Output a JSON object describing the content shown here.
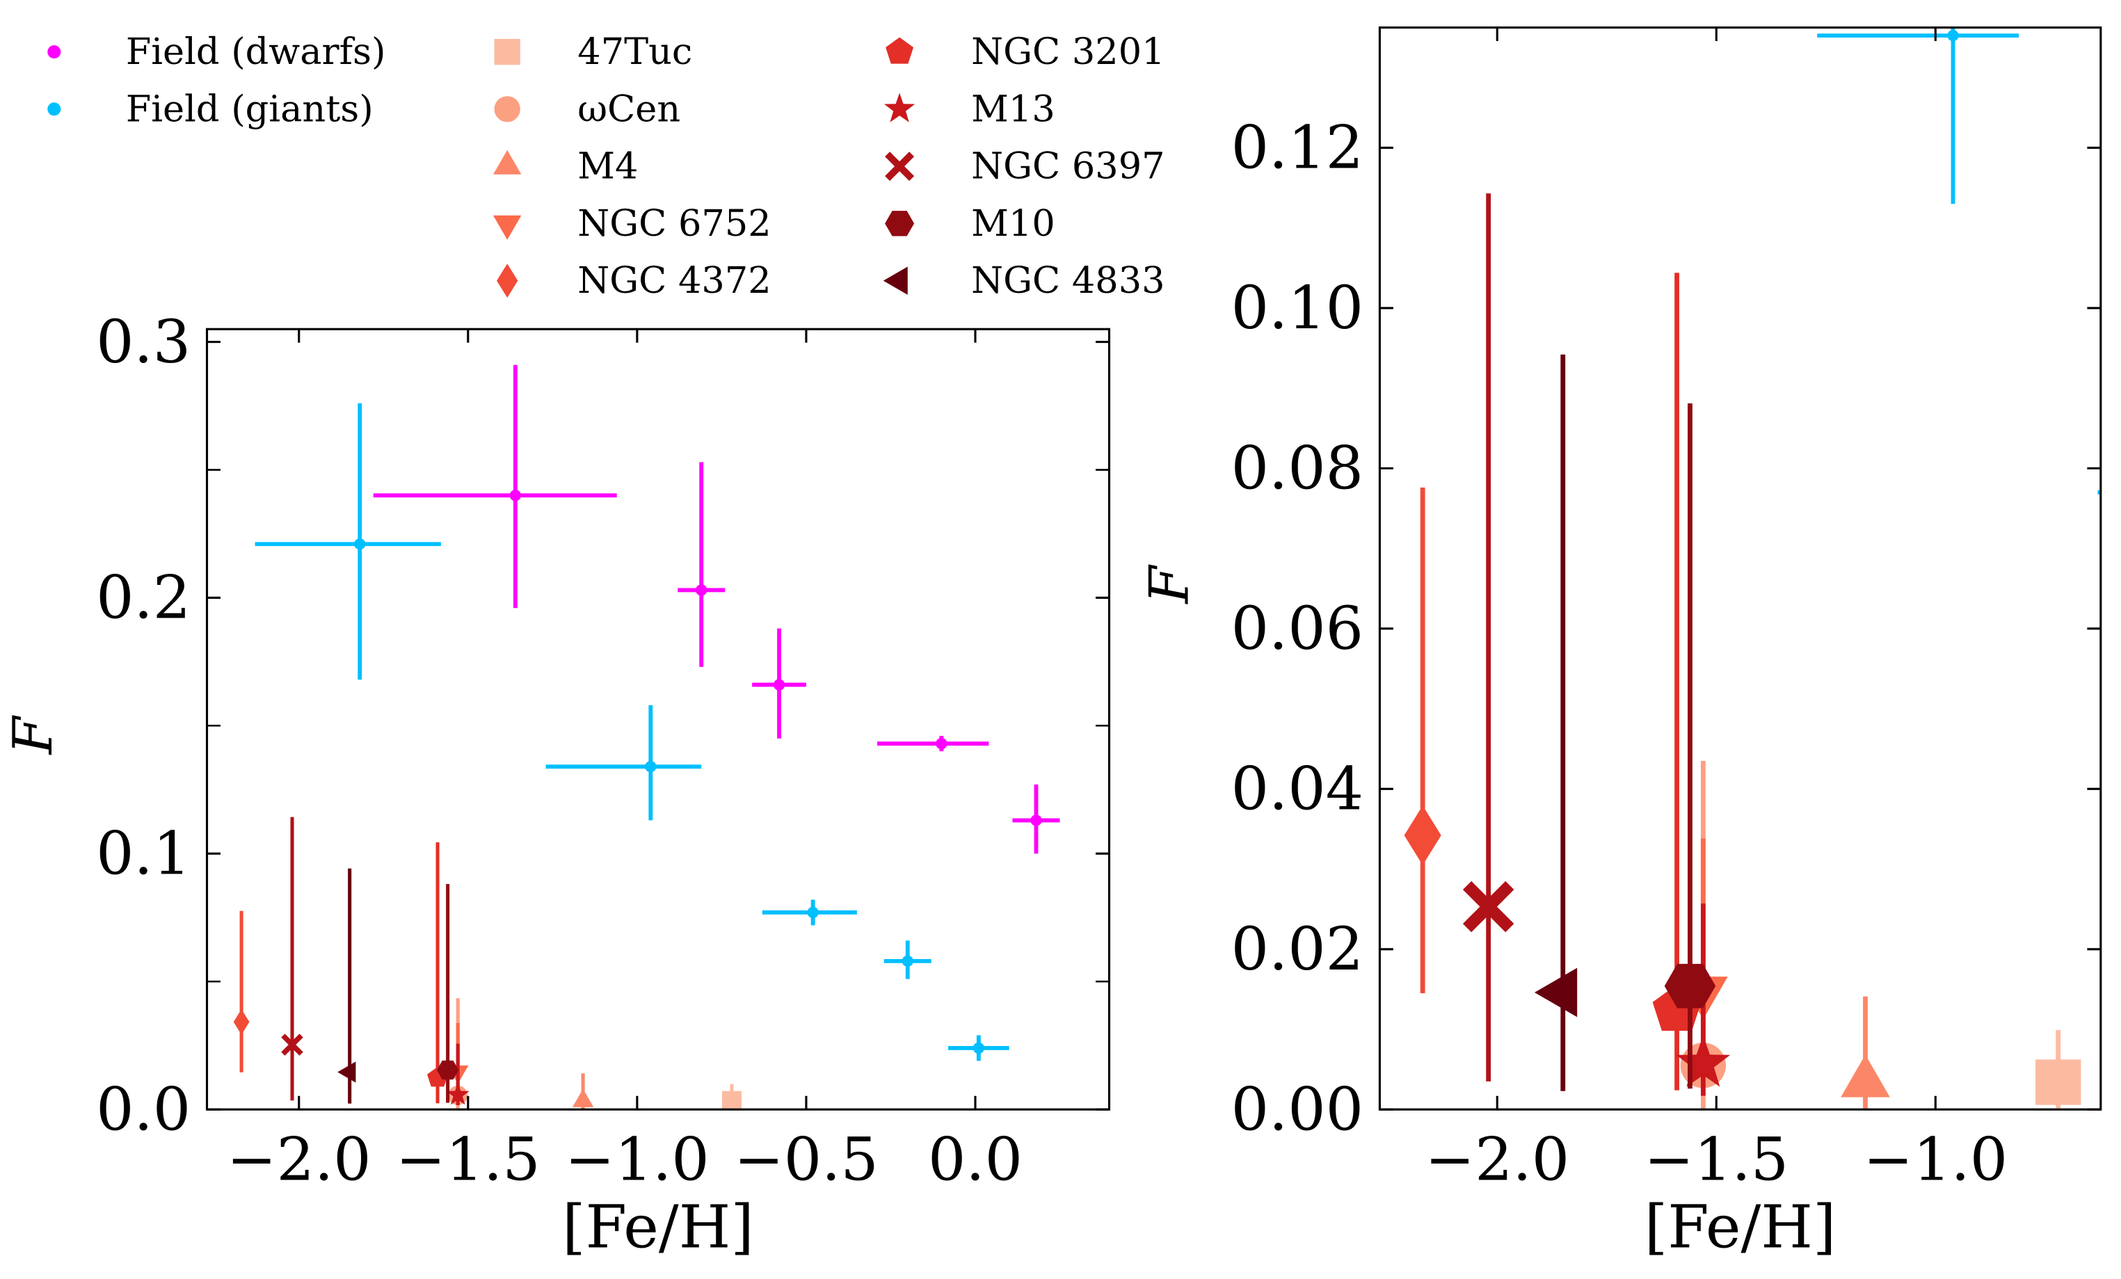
{
  "chart_data": [
    {
      "type": "scatter",
      "panel": "left",
      "xlabel": "[Fe/H]",
      "ylabel": "F",
      "xlim": [
        -2.272,
        0.396
      ],
      "ylim": [
        0,
        0.305
      ],
      "xticks": [
        -2.0,
        -1.5,
        -1.0,
        -0.5,
        0.0
      ],
      "xtick_labels": [
        "−2.0",
        "−1.5",
        "−1.0",
        "−0.5",
        "0.0"
      ],
      "yticks": [
        0.0,
        0.1,
        0.2,
        0.3
      ],
      "ytick_labels": [
        "0.0",
        "0.1",
        "0.2",
        "0.3"
      ],
      "yminor": [
        0.05,
        0.15,
        0.25
      ],
      "grid": false
    },
    {
      "type": "scatter",
      "panel": "right",
      "xlabel": "[Fe/H]",
      "ylabel": "F",
      "xlim": [
        -2.268,
        -0.623
      ],
      "ylim": [
        0,
        0.135
      ],
      "xticks": [
        -2.0,
        -1.5,
        -1.0
      ],
      "xtick_labels": [
        "−2.0",
        "−1.5",
        "−1.0"
      ],
      "yticks": [
        0.0,
        0.02,
        0.04,
        0.06,
        0.08,
        0.1,
        0.12
      ],
      "ytick_labels": [
        "0.00",
        "0.02",
        "0.04",
        "0.06",
        "0.08",
        "0.10",
        "0.12"
      ],
      "yminor": [],
      "grid": false
    }
  ],
  "legend": {
    "placement": "top",
    "columns": 3
  },
  "series": [
    {
      "name": "Field (dwarfs)",
      "marker": "dot",
      "color": "#ff00ff",
      "points": [
        {
          "x": -1.36,
          "y": 0.24,
          "xerr": [
            0.42,
            0.3
          ],
          "yerr": [
            0.044,
            0.051
          ]
        },
        {
          "x": -0.81,
          "y": 0.203,
          "xerr": [
            0.07,
            0.07
          ],
          "yerr": [
            0.03,
            0.05
          ]
        },
        {
          "x": -0.58,
          "y": 0.166,
          "xerr": [
            0.08,
            0.08
          ],
          "yerr": [
            0.021,
            0.022
          ]
        },
        {
          "x": -0.1,
          "y": 0.143,
          "xerr": [
            0.19,
            0.14
          ],
          "yerr": [
            0.003,
            0.003
          ]
        },
        {
          "x": 0.18,
          "y": 0.113,
          "xerr": [
            0.07,
            0.07
          ],
          "yerr": [
            0.013,
            0.014
          ]
        }
      ]
    },
    {
      "name": "Field (giants)",
      "marker": "dot",
      "color": "#00bfff",
      "points": [
        {
          "x": -1.82,
          "y": 0.221,
          "xerr": [
            0.31,
            0.24
          ],
          "yerr": [
            0.053,
            0.055
          ]
        },
        {
          "x": -0.96,
          "y": 0.134,
          "xerr": [
            0.31,
            0.15
          ],
          "yerr": [
            0.021,
            0.024
          ]
        },
        {
          "x": -0.48,
          "y": 0.077,
          "xerr": [
            0.15,
            0.13
          ],
          "yerr": [
            0.005,
            0.005
          ]
        },
        {
          "x": -0.2,
          "y": 0.058,
          "xerr": [
            0.07,
            0.07
          ],
          "yerr": [
            0.007,
            0.008
          ]
        },
        {
          "x": 0.01,
          "y": 0.024,
          "xerr": [
            0.09,
            0.09
          ],
          "yerr": [
            0.005,
            0.005
          ]
        }
      ]
    },
    {
      "name": "47Tuc",
      "marker": "square",
      "color": "#fcbba1",
      "points": [
        {
          "x": -0.72,
          "y": 0.0034,
          "yerr": [
            0.0034,
            0.0065
          ]
        }
      ]
    },
    {
      "name": "ωCen",
      "marker": "circle",
      "color": "#fca082",
      "points": [
        {
          "x": -1.53,
          "y": 0.0055,
          "yerr": [
            0.0055,
            0.038
          ]
        }
      ]
    },
    {
      "name": "M4",
      "marker": "triangle-up",
      "color": "#fb8768",
      "points": [
        {
          "x": -1.16,
          "y": 0.0033,
          "yerr": [
            0.0033,
            0.0108
          ]
        }
      ]
    },
    {
      "name": "NGC 6752",
      "marker": "triangle-down",
      "color": "#fb6a4a",
      "points": [
        {
          "x": -1.53,
          "y": 0.0148,
          "yerr": [
            0.012,
            0.019
          ]
        }
      ]
    },
    {
      "name": "NGC 4372",
      "marker": "diamond",
      "color": "#f24c37",
      "points": [
        {
          "x": -2.17,
          "y": 0.0342,
          "yerr": [
            0.0197,
            0.0434
          ]
        }
      ]
    },
    {
      "name": "NGC 3201",
      "marker": "pentagon",
      "color": "#e32f27",
      "points": [
        {
          "x": -1.59,
          "y": 0.0124,
          "yerr": [
            0.01,
            0.092
          ]
        }
      ]
    },
    {
      "name": "M13",
      "marker": "star",
      "color": "#ca181d",
      "points": [
        {
          "x": -1.53,
          "y": 0.0057,
          "yerr": [
            0.004,
            0.02
          ]
        }
      ]
    },
    {
      "name": "NGC 6397",
      "marker": "x-filled",
      "color": "#b11218",
      "points": [
        {
          "x": -2.02,
          "y": 0.0253,
          "yerr": [
            0.0218,
            0.089
          ]
        }
      ]
    },
    {
      "name": "M10",
      "marker": "hexagon",
      "color": "#900a12",
      "points": [
        {
          "x": -1.56,
          "y": 0.0154,
          "yerr": [
            0.0128,
            0.0727
          ]
        }
      ]
    },
    {
      "name": "NGC 4833",
      "marker": "triangle-left",
      "color": "#67000d",
      "points": [
        {
          "x": -1.85,
          "y": 0.0146,
          "yerr": [
            0.0123,
            0.0796
          ]
        }
      ]
    }
  ]
}
